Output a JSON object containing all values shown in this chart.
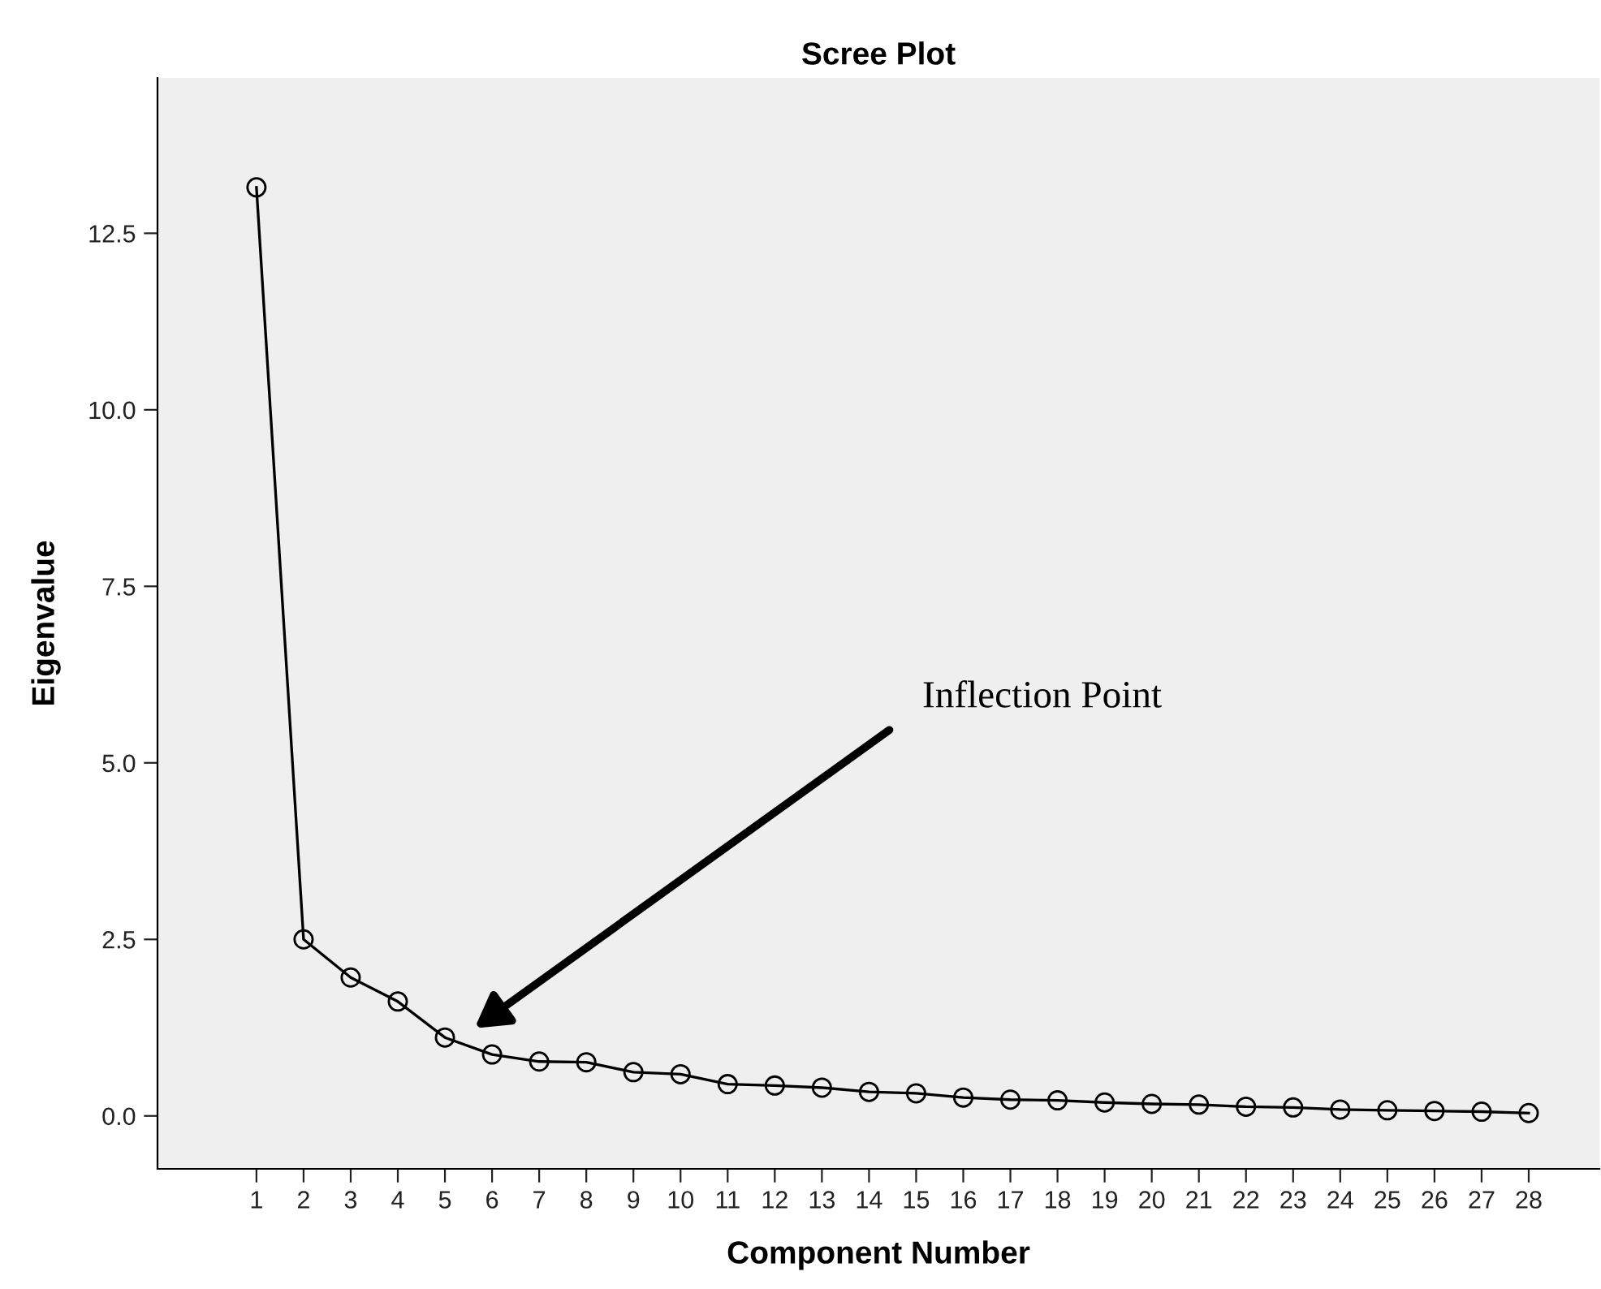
{
  "chart_data": {
    "type": "line",
    "title": "Scree Plot",
    "xlabel": "Component Number",
    "ylabel": "Eigenvalue",
    "x": [
      1,
      2,
      3,
      4,
      5,
      6,
      7,
      8,
      9,
      10,
      11,
      12,
      13,
      14,
      15,
      16,
      17,
      18,
      19,
      20,
      21,
      22,
      23,
      24,
      25,
      26,
      27,
      28
    ],
    "series": [
      {
        "color": "#000000",
        "values": [
          13.15,
          2.5,
          1.96,
          1.62,
          1.11,
          0.87,
          0.77,
          0.76,
          0.62,
          0.59,
          0.45,
          0.43,
          0.4,
          0.34,
          0.32,
          0.26,
          0.23,
          0.22,
          0.19,
          0.17,
          0.16,
          0.13,
          0.12,
          0.09,
          0.08,
          0.07,
          0.06,
          0.04
        ]
      }
    ],
    "xlim": [
      -1.1,
      29.5
    ],
    "xticks": [
      1,
      2,
      3,
      4,
      5,
      6,
      7,
      8,
      9,
      10,
      11,
      12,
      13,
      14,
      15,
      16,
      17,
      18,
      19,
      20,
      21,
      22,
      23,
      24,
      25,
      26,
      27,
      28
    ],
    "ylim": [
      -0.75,
      14.7
    ],
    "yticks": [
      {
        "value": 0,
        "label": "0.0"
      },
      {
        "value": 2.5,
        "label": "2.5"
      },
      {
        "value": 5,
        "label": "5.0"
      },
      {
        "value": 7.5,
        "label": "7.5"
      },
      {
        "value": 10,
        "label": "10.0"
      },
      {
        "value": 12.5,
        "label": "12.5"
      }
    ],
    "annotations": [
      "Inflection Point"
    ],
    "marker": "circle",
    "line_style": "solid",
    "grid": false,
    "legend": false
  }
}
